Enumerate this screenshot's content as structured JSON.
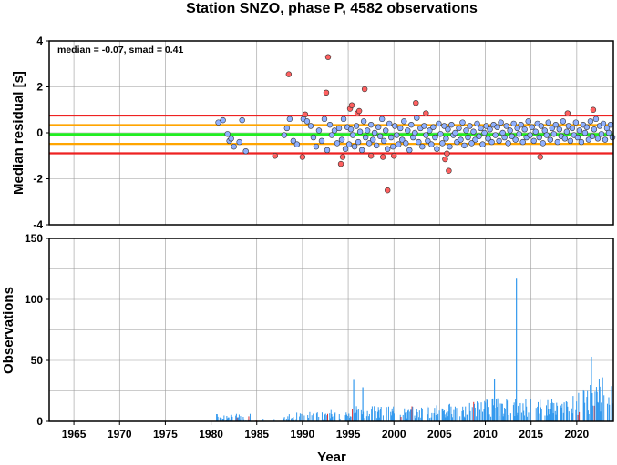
{
  "title": "Station SNZO, phase P, 4582 observations",
  "annotation": "median = -0.07, smad = 0.41",
  "colors": {
    "median_line": "#22ee22",
    "smad_line": "#ffa500",
    "limit_line": "#ee2222",
    "point_fill": "#8fb0ff",
    "point_outlier": "#ff6060",
    "bar": "#3399ee",
    "bar_outlier": "#e03030",
    "grid": "#999999"
  },
  "chart_data": [
    {
      "type": "scatter",
      "ylabel": "Median residual [s]",
      "xlim": [
        1962.3,
        2024.0
      ],
      "ylim": [
        -4,
        4
      ],
      "yticks": [
        4,
        2,
        0,
        -2,
        -4
      ],
      "grid": true,
      "reference_lines": [
        {
          "name": "median",
          "y": -0.07,
          "color": "#22ee22"
        },
        {
          "name": "upper smad",
          "y": 0.34,
          "color": "#ffa500"
        },
        {
          "name": "lower smad",
          "y": -0.48,
          "color": "#ffa500"
        },
        {
          "name": "upper limit",
          "y": 0.75,
          "color": "#ee2222"
        },
        {
          "name": "lower limit",
          "y": -0.89,
          "color": "#ee2222"
        }
      ],
      "series": [
        {
          "kind": "inlier",
          "points": [
            [
              1980.8,
              0.45
            ],
            [
              1981.3,
              0.55
            ],
            [
              1981.8,
              -0.05
            ],
            [
              1982.0,
              -0.35
            ],
            [
              1982.2,
              -0.25
            ],
            [
              1982.5,
              -0.6
            ],
            [
              1983.1,
              -0.4
            ],
            [
              1983.4,
              0.55
            ],
            [
              1983.8,
              -0.8
            ],
            [
              1988.0,
              -0.1
            ],
            [
              1988.3,
              0.2
            ],
            [
              1988.6,
              0.6
            ],
            [
              1989.0,
              -0.35
            ],
            [
              1989.4,
              -0.5
            ],
            [
              1990.1,
              0.6
            ],
            [
              1990.5,
              0.5
            ],
            [
              1990.9,
              0.3
            ],
            [
              1991.2,
              -0.2
            ],
            [
              1991.5,
              -0.6
            ],
            [
              1991.8,
              0.1
            ],
            [
              1992.1,
              -0.35
            ],
            [
              1992.4,
              0.6
            ],
            [
              1992.7,
              -0.75
            ],
            [
              1993.0,
              0.35
            ],
            [
              1993.2,
              -0.1
            ],
            [
              1993.5,
              0.1
            ],
            [
              1993.8,
              -0.45
            ],
            [
              1994.0,
              0.2
            ],
            [
              1994.3,
              -0.3
            ],
            [
              1994.5,
              0.6
            ],
            [
              1994.7,
              -0.7
            ],
            [
              1994.9,
              0.25
            ],
            [
              1995.1,
              -0.5
            ],
            [
              1995.3,
              0.15
            ],
            [
              1995.5,
              -0.1
            ],
            [
              1995.7,
              -0.6
            ],
            [
              1995.9,
              0.3
            ],
            [
              1996.1,
              -0.4
            ],
            [
              1996.3,
              0.05
            ],
            [
              1996.5,
              -0.75
            ],
            [
              1996.7,
              0.5
            ],
            [
              1996.9,
              -0.2
            ],
            [
              1997.1,
              0.1
            ],
            [
              1997.3,
              -0.45
            ],
            [
              1997.5,
              0.35
            ],
            [
              1997.7,
              -0.3
            ],
            [
              1997.9,
              0.0
            ],
            [
              1998.1,
              -0.55
            ],
            [
              1998.3,
              0.25
            ],
            [
              1998.5,
              -0.15
            ],
            [
              1998.7,
              0.6
            ],
            [
              1998.9,
              -0.35
            ],
            [
              1999.1,
              0.1
            ],
            [
              1999.3,
              -0.7
            ],
            [
              1999.5,
              0.4
            ],
            [
              1999.7,
              -0.2
            ],
            [
              1999.9,
              -0.6
            ],
            [
              2000.1,
              0.3
            ],
            [
              2000.3,
              -0.1
            ],
            [
              2000.5,
              -0.5
            ],
            [
              2000.7,
              0.2
            ],
            [
              2000.9,
              -0.3
            ],
            [
              2001.1,
              0.5
            ],
            [
              2001.3,
              -0.45
            ],
            [
              2001.5,
              0.1
            ],
            [
              2001.7,
              -0.75
            ],
            [
              2001.9,
              0.35
            ],
            [
              2002.1,
              -0.2
            ],
            [
              2002.3,
              0.0
            ],
            [
              2002.5,
              0.65
            ],
            [
              2002.7,
              -0.4
            ],
            [
              2002.9,
              0.2
            ],
            [
              2003.1,
              -0.6
            ],
            [
              2003.3,
              0.3
            ],
            [
              2003.5,
              -0.1
            ],
            [
              2003.7,
              -0.35
            ],
            [
              2003.9,
              0.1
            ],
            [
              2004.1,
              -0.5
            ],
            [
              2004.3,
              0.25
            ],
            [
              2004.5,
              -0.2
            ],
            [
              2004.7,
              -0.7
            ],
            [
              2004.9,
              0.4
            ],
            [
              2005.1,
              -0.05
            ],
            [
              2005.3,
              -0.45
            ],
            [
              2005.5,
              0.3
            ],
            [
              2005.7,
              -0.25
            ],
            [
              2005.9,
              0.15
            ],
            [
              2006.1,
              -0.6
            ],
            [
              2006.3,
              0.35
            ],
            [
              2006.5,
              -0.1
            ],
            [
              2006.7,
              0.0
            ],
            [
              2006.9,
              -0.4
            ],
            [
              2007.1,
              0.2
            ],
            [
              2007.3,
              -0.3
            ],
            [
              2007.5,
              0.45
            ],
            [
              2007.7,
              -0.55
            ],
            [
              2007.9,
              0.1
            ],
            [
              2008.1,
              -0.2
            ],
            [
              2008.3,
              0.3
            ],
            [
              2008.5,
              -0.45
            ],
            [
              2008.7,
              0.05
            ],
            [
              2008.9,
              -0.3
            ],
            [
              2009.1,
              0.4
            ],
            [
              2009.3,
              -0.15
            ],
            [
              2009.5,
              0.2
            ],
            [
              2009.7,
              -0.5
            ],
            [
              2009.9,
              0.0
            ],
            [
              2010.1,
              0.3
            ],
            [
              2010.3,
              -0.25
            ],
            [
              2010.5,
              0.15
            ],
            [
              2010.7,
              -0.4
            ],
            [
              2010.9,
              0.35
            ],
            [
              2011.1,
              -0.1
            ],
            [
              2011.3,
              0.25
            ],
            [
              2011.5,
              -0.35
            ],
            [
              2011.7,
              0.45
            ],
            [
              2011.9,
              0.0
            ],
            [
              2012.1,
              -0.2
            ],
            [
              2012.3,
              0.3
            ],
            [
              2012.5,
              -0.45
            ],
            [
              2012.7,
              0.1
            ],
            [
              2012.9,
              -0.15
            ],
            [
              2013.1,
              0.4
            ],
            [
              2013.3,
              -0.3
            ],
            [
              2013.5,
              0.2
            ],
            [
              2013.7,
              -0.05
            ],
            [
              2013.9,
              0.35
            ],
            [
              2014.1,
              -0.4
            ],
            [
              2014.3,
              0.15
            ],
            [
              2014.5,
              -0.2
            ],
            [
              2014.7,
              0.5
            ],
            [
              2014.9,
              -0.1
            ],
            [
              2015.1,
              0.25
            ],
            [
              2015.3,
              -0.35
            ],
            [
              2015.5,
              0.05
            ],
            [
              2015.7,
              0.4
            ],
            [
              2015.9,
              -0.2
            ],
            [
              2016.1,
              0.3
            ],
            [
              2016.3,
              -0.45
            ],
            [
              2016.5,
              0.1
            ],
            [
              2016.7,
              -0.1
            ],
            [
              2016.9,
              0.45
            ],
            [
              2017.1,
              -0.3
            ],
            [
              2017.3,
              0.2
            ],
            [
              2017.5,
              -0.05
            ],
            [
              2017.7,
              0.35
            ],
            [
              2017.9,
              -0.4
            ],
            [
              2018.1,
              0.15
            ],
            [
              2018.3,
              -0.15
            ],
            [
              2018.5,
              0.5
            ],
            [
              2018.7,
              -0.25
            ],
            [
              2018.9,
              0.05
            ],
            [
              2019.1,
              0.3
            ],
            [
              2019.3,
              -0.35
            ],
            [
              2019.5,
              0.2
            ],
            [
              2019.7,
              -0.1
            ],
            [
              2019.9,
              0.45
            ],
            [
              2020.1,
              -0.2
            ],
            [
              2020.3,
              0.1
            ],
            [
              2020.5,
              -0.4
            ],
            [
              2020.7,
              0.35
            ],
            [
              2020.9,
              0.0
            ],
            [
              2021.1,
              0.25
            ],
            [
              2021.3,
              -0.3
            ],
            [
              2021.5,
              0.5
            ],
            [
              2021.7,
              -0.15
            ],
            [
              2021.9,
              0.15
            ],
            [
              2022.1,
              0.6
            ],
            [
              2022.3,
              -0.25
            ],
            [
              2022.5,
              0.3
            ],
            [
              2022.7,
              -0.05
            ],
            [
              2022.9,
              0.4
            ],
            [
              2023.1,
              -0.3
            ],
            [
              2023.3,
              0.2
            ],
            [
              2023.5,
              0.0
            ],
            [
              2023.7,
              0.35
            ],
            [
              2023.9,
              -0.2
            ]
          ]
        },
        {
          "kind": "outlier",
          "points": [
            [
              1987.0,
              -1.0
            ],
            [
              1988.5,
              2.55
            ],
            [
              1990.0,
              -1.05
            ],
            [
              1990.3,
              0.8
            ],
            [
              1992.6,
              1.75
            ],
            [
              1992.8,
              3.3
            ],
            [
              1994.2,
              -1.35
            ],
            [
              1994.4,
              -1.05
            ],
            [
              1995.2,
              1.05
            ],
            [
              1995.4,
              1.2
            ],
            [
              1996.0,
              0.85
            ],
            [
              1996.2,
              0.95
            ],
            [
              1996.8,
              1.9
            ],
            [
              1997.5,
              -1.0
            ],
            [
              1998.8,
              -1.05
            ],
            [
              1999.3,
              -2.5
            ],
            [
              2000.0,
              -1.0
            ],
            [
              2002.4,
              1.3
            ],
            [
              2003.5,
              0.85
            ],
            [
              2005.6,
              -1.15
            ],
            [
              2005.8,
              -0.9
            ],
            [
              2006.0,
              -1.65
            ],
            [
              2016.0,
              -1.05
            ],
            [
              2019.0,
              0.85
            ],
            [
              2021.8,
              1.0
            ]
          ]
        }
      ]
    },
    {
      "type": "bar",
      "xlabel": "Year",
      "ylabel": "Observations",
      "xlim": [
        1962.3,
        2024.0
      ],
      "ylim": [
        0,
        150
      ],
      "yticks": [
        150,
        100,
        50,
        0
      ],
      "xticks": [
        1965,
        1970,
        1975,
        1980,
        1985,
        1990,
        1995,
        2000,
        2005,
        2010,
        2015,
        2020
      ],
      "grid": true,
      "notable_bars": [
        {
          "x": 2013.4,
          "value": 117
        },
        {
          "x": 2021.6,
          "value": 53
        },
        {
          "x": 1995.6,
          "value": 34
        },
        {
          "x": 1996.6,
          "value": 28
        },
        {
          "x": 2011.0,
          "value": 35
        }
      ]
    }
  ]
}
